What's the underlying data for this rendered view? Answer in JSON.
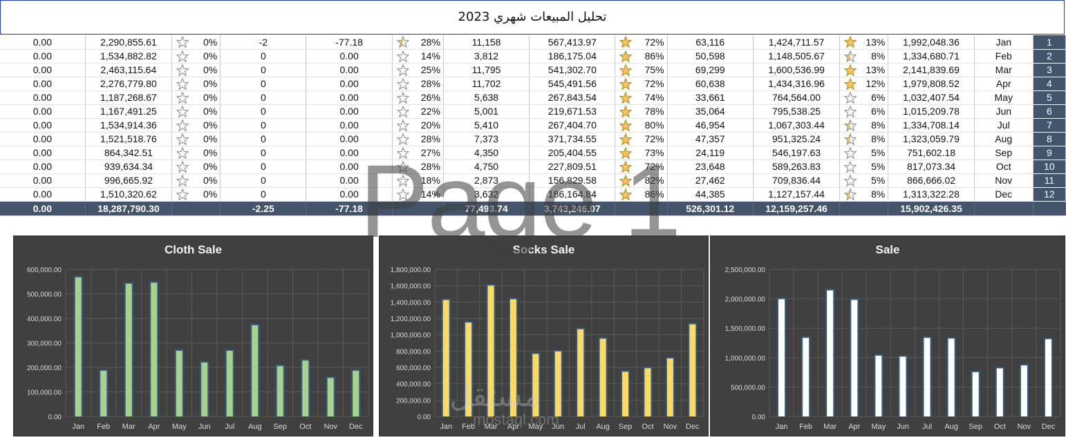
{
  "title": "تحليل المبيعات شهري 2023",
  "table": {
    "rows": [
      {
        "c1": "0.00",
        "c2": "2,290,855.61",
        "c3": "0%",
        "c4": "-2",
        "c5": "-77.18",
        "c6": "28%",
        "c7": "11,158",
        "c8": "567,413.97",
        "c9": "72%",
        "c10": "63,116",
        "c11": "1,424,711.57",
        "c12": "13%",
        "c13": "1,992,048.36",
        "month": "Jan",
        "idx": "1",
        "s3": 0,
        "s6": 0.5,
        "s9": 1,
        "s12": 1
      },
      {
        "c1": "0.00",
        "c2": "1,534,882.82",
        "c3": "0%",
        "c4": "0",
        "c5": "0.00",
        "c6": "14%",
        "c7": "3,812",
        "c8": "186,175.04",
        "c9": "86%",
        "c10": "50,598",
        "c11": "1,148,505.67",
        "c12": "8%",
        "c13": "1,334,680.71",
        "month": "Feb",
        "idx": "2",
        "s3": 0,
        "s6": 0,
        "s9": 1,
        "s12": 0.5
      },
      {
        "c1": "0.00",
        "c2": "2,463,115.64",
        "c3": "0%",
        "c4": "0",
        "c5": "0.00",
        "c6": "25%",
        "c7": "11,795",
        "c8": "541,302.70",
        "c9": "75%",
        "c10": "69,299",
        "c11": "1,600,536.99",
        "c12": "13%",
        "c13": "2,141,839.69",
        "month": "Mar",
        "idx": "3",
        "s3": 0,
        "s6": 0,
        "s9": 1,
        "s12": 1
      },
      {
        "c1": "0.00",
        "c2": "2,276,779.80",
        "c3": "0%",
        "c4": "0",
        "c5": "0.00",
        "c6": "28%",
        "c7": "11,702",
        "c8": "545,491.56",
        "c9": "72%",
        "c10": "60,638",
        "c11": "1,434,316.96",
        "c12": "12%",
        "c13": "1,979,808.52",
        "month": "Apr",
        "idx": "4",
        "s3": 0,
        "s6": 0,
        "s9": 1,
        "s12": 1
      },
      {
        "c1": "0.00",
        "c2": "1,187,268.67",
        "c3": "0%",
        "c4": "0",
        "c5": "0.00",
        "c6": "26%",
        "c7": "5,638",
        "c8": "267,843.54",
        "c9": "74%",
        "c10": "33,661",
        "c11": "764,564.00",
        "c12": "6%",
        "c13": "1,032,407.54",
        "month": "May",
        "idx": "5",
        "s3": 0,
        "s6": 0,
        "s9": 1,
        "s12": 0
      },
      {
        "c1": "0.00",
        "c2": "1,167,491.25",
        "c3": "0%",
        "c4": "0",
        "c5": "0.00",
        "c6": "22%",
        "c7": "5,001",
        "c8": "219,671.53",
        "c9": "78%",
        "c10": "35,064",
        "c11": "795,538.25",
        "c12": "6%",
        "c13": "1,015,209.78",
        "month": "Jun",
        "idx": "6",
        "s3": 0,
        "s6": 0,
        "s9": 1,
        "s12": 0
      },
      {
        "c1": "0.00",
        "c2": "1,534,914.36",
        "c3": "0%",
        "c4": "0",
        "c5": "0.00",
        "c6": "20%",
        "c7": "5,410",
        "c8": "267,404.70",
        "c9": "80%",
        "c10": "46,954",
        "c11": "1,067,303.44",
        "c12": "8%",
        "c13": "1,334,708.14",
        "month": "Jul",
        "idx": "7",
        "s3": 0,
        "s6": 0,
        "s9": 1,
        "s12": 0.5
      },
      {
        "c1": "0.00",
        "c2": "1,521,518.76",
        "c3": "0%",
        "c4": "0",
        "c5": "0.00",
        "c6": "28%",
        "c7": "7,373",
        "c8": "371,734.55",
        "c9": "72%",
        "c10": "47,357",
        "c11": "951,325.24",
        "c12": "8%",
        "c13": "1,323,059.79",
        "month": "Aug",
        "idx": "8",
        "s3": 0,
        "s6": 0,
        "s9": 1,
        "s12": 0.5
      },
      {
        "c1": "0.00",
        "c2": "864,342.51",
        "c3": "0%",
        "c4": "0",
        "c5": "0.00",
        "c6": "27%",
        "c7": "4,350",
        "c8": "205,404.55",
        "c9": "73%",
        "c10": "24,119",
        "c11": "546,197.63",
        "c12": "5%",
        "c13": "751,602.18",
        "month": "Sep",
        "idx": "9",
        "s3": 0,
        "s6": 0,
        "s9": 1,
        "s12": 0
      },
      {
        "c1": "0.00",
        "c2": "939,634.34",
        "c3": "0%",
        "c4": "0",
        "c5": "0.00",
        "c6": "28%",
        "c7": "4,750",
        "c8": "227,809.51",
        "c9": "72%",
        "c10": "23,648",
        "c11": "589,263.83",
        "c12": "5%",
        "c13": "817,073.34",
        "month": "Oct",
        "idx": "10",
        "s3": 0,
        "s6": 0,
        "s9": 1,
        "s12": 0
      },
      {
        "c1": "0.00",
        "c2": "996,665.92",
        "c3": "0%",
        "c4": "0",
        "c5": "0.00",
        "c6": "18%",
        "c7": "2,873",
        "c8": "156,829.58",
        "c9": "82%",
        "c10": "27,462",
        "c11": "709,836.44",
        "c12": "5%",
        "c13": "866,666.02",
        "month": "Nov",
        "idx": "11",
        "s3": 0,
        "s6": 0,
        "s9": 1,
        "s12": 0
      },
      {
        "c1": "0.00",
        "c2": "1,510,320.62",
        "c3": "0%",
        "c4": "0",
        "c5": "0.00",
        "c6": "14%",
        "c7": "3,632",
        "c8": "186,164.84",
        "c9": "86%",
        "c10": "44,385",
        "c11": "1,127,157.44",
        "c12": "8%",
        "c13": "1,313,322.28",
        "month": "Dec",
        "idx": "12",
        "s3": 0,
        "s6": 0,
        "s9": 1,
        "s12": 0.5
      }
    ],
    "total": {
      "c1": "0.00",
      "c2": "18,287,790.30",
      "c3": "",
      "c4": "-2.25",
      "c5": "-77.18",
      "c6": "",
      "c7": "77,493.74",
      "c8": "3,743,246.07",
      "c9": "",
      "c10": "526,301.12",
      "c11": "12,159,257.46",
      "c12": "",
      "c13": "15,902,426.35",
      "month": "",
      "idx": ""
    }
  },
  "watermark": {
    "big": "Page 1",
    "brand": "مستقل",
    "site": "mostaql.com"
  },
  "colors": {
    "header_dark": "#44546a",
    "chart_bg": "#404040",
    "star_fill": "#f5c46b",
    "star_outline": "#8c8c8c"
  },
  "chart_data": [
    {
      "type": "bar",
      "title": "Cloth Sale",
      "categories": [
        "Jan",
        "Feb",
        "Mar",
        "Apr",
        "May",
        "Jun",
        "Jul",
        "Aug",
        "Sep",
        "Oct",
        "Nov",
        "Dec"
      ],
      "values": [
        567413.97,
        186175.04,
        541302.7,
        545491.56,
        267843.54,
        219671.53,
        267404.7,
        371734.55,
        205404.55,
        227809.51,
        156829.58,
        186164.84
      ],
      "ylim": [
        0,
        600000
      ],
      "yticks": [
        "0.00",
        "100,000.00",
        "200,000.00",
        "300,000.00",
        "400,000.00",
        "500,000.00",
        "600,000.00"
      ],
      "bar_color": "#a9d18e",
      "grid": true
    },
    {
      "type": "bar",
      "title": "Socks Sale",
      "categories": [
        "Jan",
        "Feb",
        "Mar",
        "Apr",
        "May",
        "Jun",
        "Jul",
        "Aug",
        "Sep",
        "Oct",
        "Nov",
        "Dec"
      ],
      "values": [
        1424711.57,
        1148505.67,
        1600536.99,
        1434316.96,
        764564.0,
        795538.25,
        1067303.44,
        951325.24,
        546197.63,
        589263.83,
        709836.44,
        1127157.44
      ],
      "ylim": [
        0,
        1800000
      ],
      "yticks": [
        "0.00",
        "200,000.00",
        "400,000.00",
        "600,000.00",
        "800,000.00",
        "1,000,000.00",
        "1,200,000.00",
        "1,400,000.00",
        "1,600,000.00",
        "1,800,000.00"
      ],
      "bar_color": "#ffd966",
      "grid": true
    },
    {
      "type": "bar",
      "title": "Sale",
      "categories": [
        "Jan",
        "Feb",
        "Mar",
        "Apr",
        "May",
        "Jun",
        "Jul",
        "Aug",
        "Sep",
        "Oct",
        "Nov",
        "Dec"
      ],
      "values": [
        1992048.36,
        1334680.71,
        2141839.69,
        1979808.52,
        1032407.54,
        1015209.78,
        1334708.14,
        1323059.79,
        751602.18,
        817073.34,
        866666.02,
        1313322.28
      ],
      "ylim": [
        0,
        2500000
      ],
      "yticks": [
        "0.00",
        "500,000.00",
        "1,000,000.00",
        "1,500,000.00",
        "2,000,000.00",
        "2,500,000.00"
      ],
      "bar_color": "#ffffff",
      "grid": true
    }
  ]
}
